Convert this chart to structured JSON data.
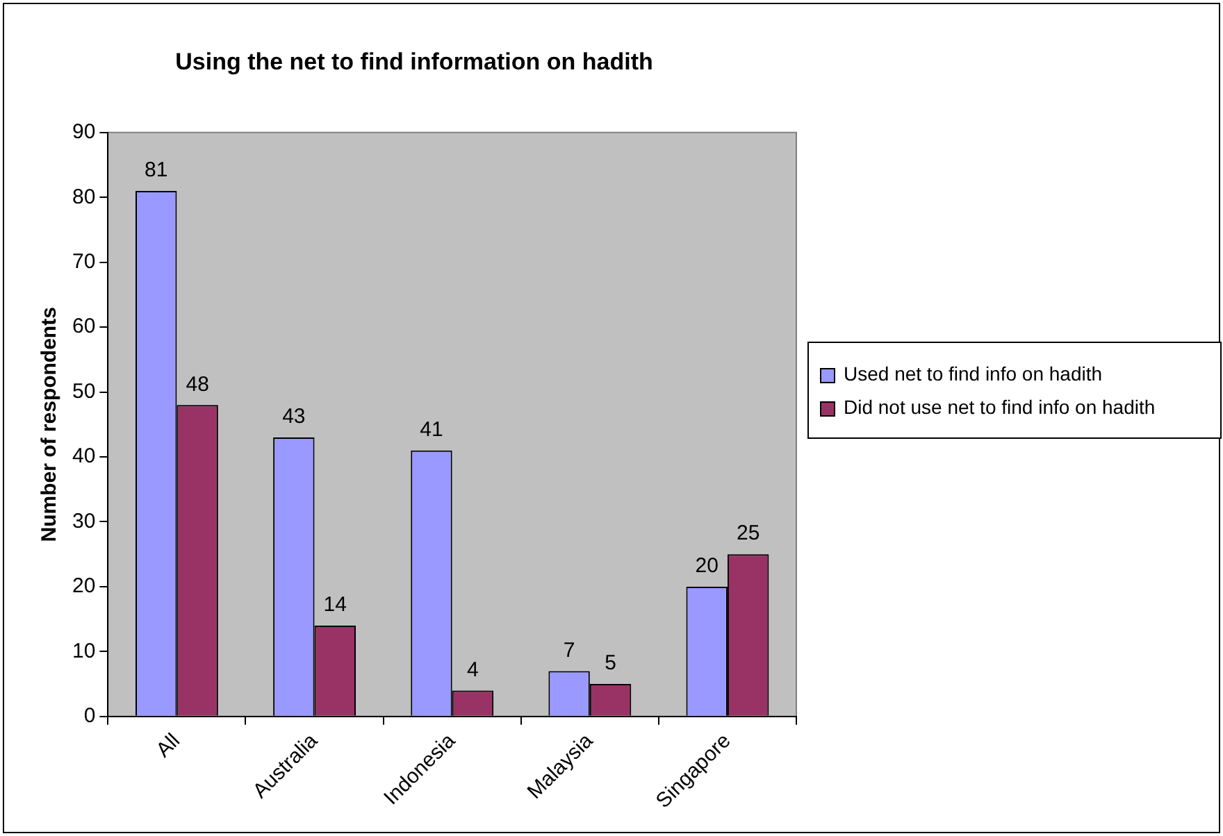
{
  "chart_data": {
    "type": "bar",
    "title": "Using the net to find information on hadith",
    "ylabel": "Number of respondents",
    "categories": [
      "All",
      "Australia",
      "Indonesia",
      "Malaysia",
      "Singapore"
    ],
    "series": [
      {
        "name": "Used net to find info on hadith",
        "color": "#9999ff",
        "values": [
          81,
          43,
          41,
          7,
          20
        ]
      },
      {
        "name": "Did not use net to find info on hadith",
        "color": "#993366",
        "values": [
          48,
          14,
          4,
          5,
          25
        ]
      }
    ],
    "ylim": [
      0,
      90
    ],
    "yticks": [
      0,
      10,
      20,
      30,
      40,
      50,
      60,
      70,
      80,
      90
    ],
    "grid": false,
    "legend": "right",
    "data_labels": true
  }
}
